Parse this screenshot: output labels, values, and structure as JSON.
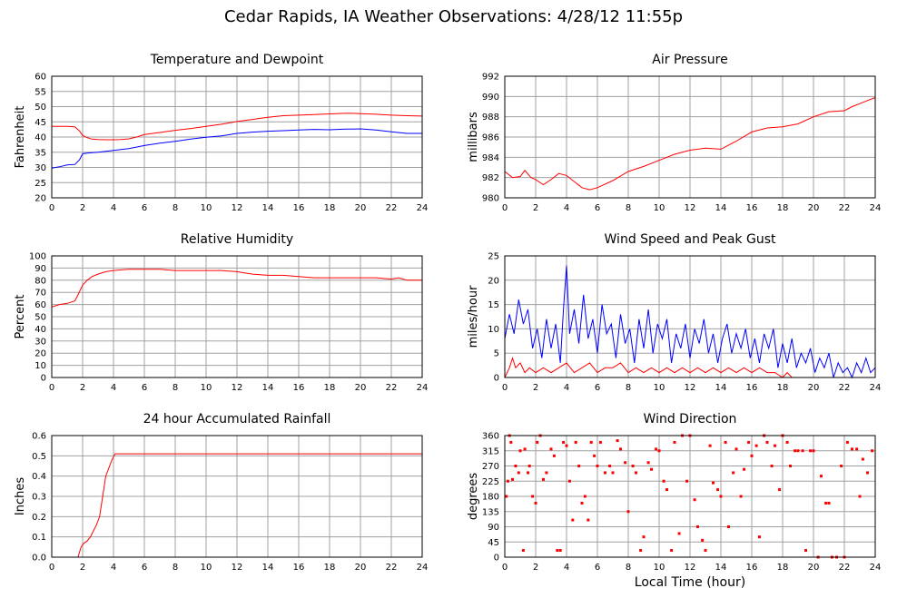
{
  "title": "Cedar Rapids, IA Weather Observations: 4/28/12 11:55p",
  "xlabel": "Local Time (hour)",
  "colors": {
    "red": "#ff0000",
    "blue": "#0000ff",
    "grid": "#a0a0a0"
  },
  "chart_data": [
    {
      "id": "temperature",
      "type": "line",
      "title": "Temperature and Dewpoint",
      "xlabel": "",
      "ylabel": "Fahrenheit",
      "xlim": [
        0,
        24
      ],
      "ylim": [
        20,
        60
      ],
      "xticks": [
        0,
        2,
        4,
        6,
        8,
        10,
        12,
        14,
        16,
        18,
        20,
        22,
        24
      ],
      "yticks": [
        20,
        25,
        30,
        35,
        40,
        45,
        50,
        55,
        60
      ],
      "grid": true,
      "series": [
        {
          "color": "#ff0000",
          "x": [
            0,
            1,
            1.5,
            1.8,
            2,
            2.3,
            2.6,
            3,
            3.5,
            4,
            4.5,
            5,
            5.5,
            6,
            7,
            8,
            9,
            10,
            11,
            12,
            13,
            14,
            15,
            16,
            17,
            18,
            19,
            19.5,
            20,
            21,
            22,
            23,
            24
          ],
          "y": [
            43.5,
            43.5,
            43.3,
            42,
            40.5,
            39.8,
            39.3,
            39.2,
            39.1,
            39.1,
            39.2,
            39.4,
            40,
            40.8,
            41.5,
            42.2,
            42.8,
            43.5,
            44.2,
            45.1,
            45.8,
            46.5,
            47,
            47.2,
            47.4,
            47.6,
            47.8,
            47.8,
            47.7,
            47.5,
            47.2,
            47,
            46.9
          ]
        },
        {
          "color": "#0000ff",
          "x": [
            0,
            0.5,
            1,
            1.5,
            1.8,
            2,
            2.5,
            3,
            4,
            5,
            6,
            7,
            8,
            9,
            10,
            11,
            12,
            13,
            14,
            15,
            16,
            17,
            18,
            19,
            19.5,
            20,
            21,
            22,
            23,
            24
          ],
          "y": [
            29.8,
            30.2,
            30.8,
            31,
            32.5,
            34.5,
            34.8,
            35,
            35.6,
            36.2,
            37.2,
            38,
            38.6,
            39.3,
            39.9,
            40.4,
            41.2,
            41.6,
            41.9,
            42.1,
            42.3,
            42.5,
            42.4,
            42.6,
            42.6,
            42.7,
            42.3,
            41.7,
            41.2,
            41.2
          ]
        }
      ]
    },
    {
      "id": "pressure",
      "type": "line",
      "title": "Air Pressure",
      "xlabel": "",
      "ylabel": "millibars",
      "xlim": [
        0,
        24
      ],
      "ylim": [
        980,
        992
      ],
      "xticks": [
        0,
        2,
        4,
        6,
        8,
        10,
        12,
        14,
        16,
        18,
        20,
        22,
        24
      ],
      "yticks": [
        980,
        982,
        984,
        986,
        988,
        990,
        992
      ],
      "grid": true,
      "series": [
        {
          "color": "#ff0000",
          "x": [
            0,
            0.5,
            1,
            1.3,
            1.7,
            2,
            2.5,
            3,
            3.5,
            4,
            4.5,
            5,
            5.5,
            6,
            7,
            8,
            9,
            10,
            11,
            12,
            13,
            14,
            15,
            16,
            17,
            18,
            19,
            20,
            21,
            22,
            22.5,
            23,
            23.5,
            24
          ],
          "y": [
            982.6,
            982.0,
            982.1,
            982.7,
            982.0,
            981.8,
            981.3,
            981.8,
            982.4,
            982.2,
            981.6,
            981.0,
            980.8,
            981.0,
            981.7,
            982.6,
            983.1,
            983.7,
            984.3,
            984.7,
            984.9,
            984.8,
            985.6,
            986.5,
            986.9,
            987.0,
            987.3,
            988.0,
            988.5,
            988.6,
            989.0,
            989.3,
            989.6,
            989.9
          ]
        }
      ]
    },
    {
      "id": "humidity",
      "type": "line",
      "title": "Relative Humidity",
      "xlabel": "",
      "ylabel": "Percent",
      "xlim": [
        0,
        24
      ],
      "ylim": [
        0,
        100
      ],
      "xticks": [
        0,
        2,
        4,
        6,
        8,
        10,
        12,
        14,
        16,
        18,
        20,
        22,
        24
      ],
      "yticks": [
        0,
        10,
        20,
        30,
        40,
        50,
        60,
        70,
        80,
        90,
        100
      ],
      "grid": true,
      "series": [
        {
          "color": "#ff0000",
          "x": [
            0,
            0.5,
            1,
            1.5,
            1.7,
            2,
            2.3,
            2.6,
            3,
            3.5,
            4,
            5,
            6,
            7,
            8,
            9,
            10,
            11,
            12,
            13,
            14,
            15,
            16,
            17,
            18,
            19,
            20,
            21,
            22,
            22.5,
            23,
            24
          ],
          "y": [
            58,
            60,
            61,
            63,
            68,
            76,
            80,
            83,
            85,
            87,
            88,
            89,
            89,
            89,
            88,
            88,
            88,
            88,
            87,
            85,
            84,
            84,
            83,
            82,
            82,
            82,
            82,
            82,
            81,
            82,
            80,
            80
          ]
        }
      ]
    },
    {
      "id": "wind",
      "type": "line",
      "title": "Wind Speed and Peak Gust",
      "xlabel": "",
      "ylabel": "miles/hour",
      "xlim": [
        0,
        24
      ],
      "ylim": [
        0,
        25
      ],
      "xticks": [
        0,
        2,
        4,
        6,
        8,
        10,
        12,
        14,
        16,
        18,
        20,
        22,
        24
      ],
      "yticks": [
        0,
        5,
        10,
        15,
        20,
        25
      ],
      "grid": true,
      "series": [
        {
          "color": "#0000ff",
          "x": [
            0,
            0.3,
            0.6,
            0.9,
            1.2,
            1.5,
            1.8,
            2.1,
            2.4,
            2.7,
            3,
            3.3,
            3.6,
            3.8,
            4,
            4.2,
            4.5,
            4.8,
            5.1,
            5.4,
            5.7,
            6,
            6.3,
            6.6,
            6.9,
            7.2,
            7.5,
            7.8,
            8.1,
            8.4,
            8.7,
            9,
            9.3,
            9.6,
            9.9,
            10.2,
            10.5,
            10.8,
            11.1,
            11.4,
            11.7,
            12,
            12.3,
            12.6,
            12.9,
            13.2,
            13.5,
            13.8,
            14.1,
            14.4,
            14.7,
            15,
            15.3,
            15.6,
            15.9,
            16.2,
            16.5,
            16.8,
            17.1,
            17.4,
            17.7,
            18,
            18.3,
            18.6,
            18.9,
            19.2,
            19.5,
            19.8,
            20.1,
            20.4,
            20.7,
            21,
            21.3,
            21.6,
            21.9,
            22.2,
            22.5,
            22.8,
            23.1,
            23.4,
            23.7,
            24
          ],
          "y": [
            8,
            13,
            9,
            16,
            11,
            14,
            6,
            10,
            4,
            12,
            6,
            11,
            3,
            14,
            23,
            9,
            14,
            7,
            17,
            8,
            12,
            5,
            15,
            9,
            11,
            4,
            13,
            7,
            10,
            3,
            12,
            6,
            14,
            5,
            11,
            8,
            12,
            3,
            9,
            6,
            11,
            4,
            10,
            7,
            12,
            5,
            9,
            3,
            8,
            11,
            5,
            9,
            6,
            10,
            4,
            8,
            3,
            9,
            6,
            10,
            2,
            7,
            3,
            8,
            2,
            5,
            3,
            6,
            1,
            4,
            2,
            5,
            0,
            3,
            1,
            2,
            0,
            3,
            1,
            4,
            1,
            2
          ]
        },
        {
          "color": "#ff0000",
          "x": [
            0,
            0.3,
            0.5,
            0.7,
            1,
            1.3,
            1.6,
            2,
            2.5,
            3,
            3.5,
            4,
            4.5,
            5,
            5.5,
            6,
            6.5,
            7,
            7.5,
            8,
            8.5,
            9,
            9.5,
            10,
            10.5,
            11,
            11.5,
            12,
            12.5,
            13,
            13.5,
            14,
            14.5,
            15,
            15.5,
            16,
            16.5,
            17,
            17.5,
            18,
            18.3,
            18.6,
            19,
            19.5,
            20,
            21,
            22,
            23,
            24
          ],
          "y": [
            0,
            2,
            4,
            2,
            3,
            1,
            2,
            1,
            2,
            1,
            2,
            3,
            1,
            2,
            3,
            1,
            2,
            2,
            3,
            1,
            2,
            1,
            2,
            1,
            2,
            1,
            2,
            1,
            2,
            1,
            2,
            1,
            2,
            1,
            2,
            1,
            2,
            1,
            1,
            0,
            1,
            0,
            0,
            0,
            0,
            0,
            0,
            0,
            0
          ]
        }
      ]
    },
    {
      "id": "rainfall",
      "type": "line",
      "title": "24 hour Accumulated Rainfall",
      "xlabel": "",
      "ylabel": "Inches",
      "xlim": [
        0,
        24
      ],
      "ylim": [
        0,
        0.6
      ],
      "xticks": [
        0,
        2,
        4,
        6,
        8,
        10,
        12,
        14,
        16,
        18,
        20,
        22,
        24
      ],
      "yticks": [
        0.0,
        0.1,
        0.2,
        0.3,
        0.4,
        0.5,
        0.6
      ],
      "yticklabels": [
        "0.0",
        "0.1",
        "0.2",
        "0.3",
        "0.4",
        "0.5",
        "0.6"
      ],
      "grid": true,
      "series": [
        {
          "color": "#ff0000",
          "x": [
            0,
            1.7,
            1.9,
            2.1,
            2.3,
            2.5,
            2.7,
            2.9,
            3.1,
            3.3,
            3.5,
            3.7,
            3.9,
            4.1,
            4.3,
            6,
            8,
            10,
            12,
            14,
            16,
            18,
            20,
            22,
            24
          ],
          "y": [
            0,
            0,
            0.05,
            0.07,
            0.08,
            0.1,
            0.13,
            0.16,
            0.2,
            0.3,
            0.4,
            0.44,
            0.48,
            0.51,
            0.51,
            0.51,
            0.51,
            0.51,
            0.51,
            0.51,
            0.51,
            0.51,
            0.51,
            0.51,
            0.51
          ]
        }
      ]
    },
    {
      "id": "direction",
      "type": "scatter",
      "title": "Wind Direction",
      "xlabel": "Local Time (hour)",
      "ylabel": "degrees",
      "xlim": [
        0,
        24
      ],
      "ylim": [
        0,
        360
      ],
      "xticks": [
        0,
        2,
        4,
        6,
        8,
        10,
        12,
        14,
        16,
        18,
        20,
        22,
        24
      ],
      "yticks": [
        0,
        45,
        90,
        135,
        180,
        225,
        270,
        315,
        360
      ],
      "grid": true,
      "series": [
        {
          "color": "#ff0000",
          "x": [
            0.1,
            0.2,
            0.3,
            0.4,
            0.5,
            0.7,
            0.9,
            1.0,
            1.2,
            1.3,
            1.5,
            1.6,
            1.8,
            2.0,
            2.1,
            2.3,
            2.5,
            2.7,
            3.0,
            3.2,
            3.4,
            3.6,
            3.8,
            4.0,
            4.2,
            4.4,
            4.6,
            4.8,
            5.0,
            5.2,
            5.4,
            5.6,
            5.8,
            6.0,
            6.2,
            6.5,
            6.8,
            7.0,
            7.3,
            7.5,
            7.8,
            8.0,
            8.3,
            8.5,
            8.8,
            9.0,
            9.3,
            9.5,
            9.8,
            10.0,
            10.3,
            10.5,
            10.8,
            11.0,
            11.3,
            11.5,
            11.8,
            12.0,
            12.3,
            12.5,
            12.8,
            13.0,
            13.3,
            13.5,
            13.8,
            14.0,
            14.3,
            14.5,
            14.8,
            15.0,
            15.3,
            15.5,
            15.8,
            16.0,
            16.3,
            16.5,
            16.8,
            17.0,
            17.3,
            17.5,
            17.8,
            18.0,
            18.3,
            18.5,
            18.8,
            19.0,
            19.3,
            19.5,
            19.8,
            20.0,
            20.3,
            20.5,
            20.8,
            21.0,
            21.2,
            21.5,
            21.8,
            22.0,
            22.2,
            22.5,
            22.8,
            23.0,
            23.2,
            23.5,
            23.8
          ],
          "y": [
            180,
            225,
            360,
            340,
            230,
            270,
            250,
            315,
            20,
            320,
            250,
            270,
            180,
            160,
            340,
            360,
            230,
            250,
            320,
            300,
            20,
            20,
            340,
            330,
            225,
            110,
            340,
            270,
            160,
            180,
            110,
            340,
            300,
            270,
            340,
            250,
            270,
            250,
            345,
            320,
            280,
            135,
            270,
            250,
            20,
            60,
            280,
            260,
            320,
            315,
            225,
            200,
            20,
            340,
            70,
            360,
            225,
            360,
            170,
            90,
            50,
            20,
            330,
            220,
            200,
            180,
            340,
            90,
            250,
            320,
            180,
            260,
            340,
            300,
            330,
            60,
            360,
            340,
            270,
            330,
            200,
            360,
            340,
            270,
            315,
            315,
            315,
            20,
            315,
            315,
            0,
            240,
            160,
            160,
            0,
            0,
            270,
            0,
            340,
            320,
            320,
            180,
            290,
            250,
            315
          ]
        }
      ]
    }
  ]
}
